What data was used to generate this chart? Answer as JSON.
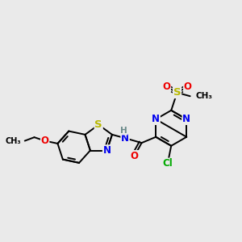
{
  "background_color": "#eaeaea",
  "atom_colors": {
    "S": "#b8b800",
    "N": "#0000ee",
    "O": "#ee0000",
    "Cl": "#00aa00",
    "H": "#6a8a8a",
    "C": "#000000"
  },
  "font_size": 8.5,
  "bond_width": 1.4,
  "lw": 1.4
}
